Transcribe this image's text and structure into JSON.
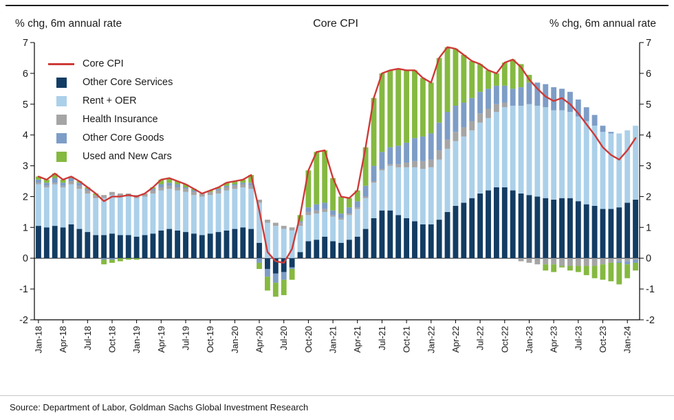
{
  "header": {
    "left_axis_title": "% chg, 6m annual rate",
    "title": "Core CPI",
    "right_axis_title": "% chg, 6m annual rate"
  },
  "source": "Source: Department of Labor, Goldman Sachs Global Investment Research",
  "chart_data": {
    "type": "bar",
    "stacked": true,
    "grid": false,
    "legend_position": "top-left",
    "title": "Core CPI",
    "ylabel_left": "% chg, 6m annual rate",
    "ylabel_right": "% chg, 6m annual rate",
    "ylim": [
      -2,
      7
    ],
    "yticks": [
      -2,
      -1,
      0,
      1,
      2,
      3,
      4,
      5,
      6,
      7
    ],
    "x_tick_every": 3,
    "months": [
      "Jan-18",
      "Feb-18",
      "Mar-18",
      "Apr-18",
      "May-18",
      "Jun-18",
      "Jul-18",
      "Aug-18",
      "Sep-18",
      "Oct-18",
      "Nov-18",
      "Dec-18",
      "Jan-19",
      "Feb-19",
      "Mar-19",
      "Apr-19",
      "May-19",
      "Jun-19",
      "Jul-19",
      "Aug-19",
      "Sep-19",
      "Oct-19",
      "Nov-19",
      "Dec-19",
      "Jan-20",
      "Feb-20",
      "Mar-20",
      "Apr-20",
      "May-20",
      "Jun-20",
      "Jul-20",
      "Aug-20",
      "Sep-20",
      "Oct-20",
      "Nov-20",
      "Dec-20",
      "Jan-21",
      "Feb-21",
      "Mar-21",
      "Apr-21",
      "May-21",
      "Jun-21",
      "Jul-21",
      "Aug-21",
      "Sep-21",
      "Oct-21",
      "Nov-21",
      "Dec-21",
      "Jan-22",
      "Feb-22",
      "Mar-22",
      "Apr-22",
      "May-22",
      "Jun-22",
      "Jul-22",
      "Aug-22",
      "Sep-22",
      "Oct-22",
      "Nov-22",
      "Dec-22",
      "Jan-23",
      "Feb-23",
      "Mar-23",
      "Apr-23",
      "May-23",
      "Jun-23",
      "Jul-23",
      "Aug-23",
      "Sep-23",
      "Oct-23",
      "Nov-23",
      "Dec-23",
      "Jan-24",
      "Feb-24"
    ],
    "series": [
      {
        "name": "Other Core Services",
        "color": "#123c63",
        "values": [
          1.05,
          1.0,
          1.05,
          1.0,
          1.1,
          0.95,
          0.85,
          0.75,
          0.75,
          0.8,
          0.75,
          0.75,
          0.7,
          0.75,
          0.8,
          0.9,
          0.95,
          0.9,
          0.85,
          0.8,
          0.75,
          0.8,
          0.85,
          0.9,
          0.95,
          1.0,
          0.95,
          0.5,
          -0.35,
          -0.5,
          -0.45,
          -0.3,
          0.2,
          0.55,
          0.6,
          0.7,
          0.55,
          0.5,
          0.6,
          0.7,
          0.95,
          1.3,
          1.55,
          1.55,
          1.4,
          1.3,
          1.2,
          1.1,
          1.1,
          1.25,
          1.5,
          1.7,
          1.8,
          1.95,
          2.1,
          2.2,
          2.3,
          2.3,
          2.2,
          2.1,
          2.05,
          2.0,
          1.95,
          1.9,
          1.95,
          1.95,
          1.85,
          1.75,
          1.7,
          1.6,
          1.6,
          1.65,
          1.8,
          1.9
        ]
      },
      {
        "name": "Rent + OER",
        "color": "#abd0e9",
        "values": [
          1.35,
          1.3,
          1.35,
          1.3,
          1.3,
          1.3,
          1.25,
          1.2,
          1.2,
          1.25,
          1.25,
          1.25,
          1.25,
          1.25,
          1.3,
          1.3,
          1.3,
          1.3,
          1.3,
          1.25,
          1.25,
          1.25,
          1.25,
          1.3,
          1.3,
          1.3,
          1.3,
          1.3,
          1.15,
          1.05,
          0.95,
          0.9,
          0.85,
          0.85,
          0.85,
          0.8,
          0.8,
          0.75,
          0.8,
          0.9,
          1.0,
          1.15,
          1.3,
          1.45,
          1.55,
          1.65,
          1.75,
          1.8,
          1.85,
          1.95,
          2.05,
          2.1,
          2.15,
          2.2,
          2.3,
          2.35,
          2.45,
          2.6,
          2.75,
          2.85,
          2.95,
          2.95,
          2.95,
          2.9,
          2.85,
          2.8,
          2.75,
          2.7,
          2.6,
          2.5,
          2.45,
          2.4,
          2.35,
          2.4
        ]
      },
      {
        "name": "Health Insurance",
        "color": "#a5a5a5",
        "values": [
          0.05,
          0.05,
          0.05,
          0.05,
          0.1,
          0.1,
          0.1,
          0.1,
          0.1,
          0.1,
          0.1,
          0.1,
          0.1,
          0.1,
          0.1,
          0.1,
          0.1,
          0.1,
          0.1,
          0.1,
          0.1,
          0.1,
          0.1,
          0.1,
          0.1,
          0.1,
          0.1,
          0.1,
          0.1,
          0.1,
          0.1,
          0.1,
          0.1,
          0.1,
          0.1,
          0.1,
          0.05,
          0.05,
          0.05,
          0.05,
          0.05,
          0.05,
          0.05,
          0.05,
          0.1,
          0.15,
          0.2,
          0.25,
          0.25,
          0.3,
          0.3,
          0.3,
          0.3,
          0.3,
          0.3,
          0.3,
          0.25,
          0.15,
          0.0,
          -0.1,
          -0.15,
          -0.2,
          -0.2,
          -0.2,
          -0.25,
          -0.25,
          -0.25,
          -0.25,
          -0.25,
          -0.2,
          -0.15,
          -0.1,
          -0.1,
          -0.05
        ]
      },
      {
        "name": "Other Core Goods",
        "color": "#7d9dc7",
        "values": [
          0.1,
          0.1,
          0.15,
          0.1,
          0.1,
          0.1,
          0.05,
          0.0,
          -0.05,
          -0.05,
          0.0,
          0.0,
          0.0,
          0.0,
          0.05,
          0.1,
          0.1,
          0.1,
          0.05,
          0.05,
          0.0,
          0.0,
          0.05,
          0.05,
          0.05,
          0.05,
          0.1,
          -0.15,
          -0.25,
          -0.3,
          -0.25,
          -0.05,
          0.05,
          0.15,
          0.2,
          0.2,
          0.15,
          0.15,
          0.2,
          0.2,
          0.35,
          0.5,
          0.55,
          0.55,
          0.6,
          0.65,
          0.75,
          0.8,
          0.85,
          0.9,
          0.9,
          0.85,
          0.8,
          0.75,
          0.7,
          0.65,
          0.6,
          0.55,
          0.55,
          0.6,
          0.7,
          0.75,
          0.75,
          0.75,
          0.7,
          0.65,
          0.55,
          0.45,
          0.35,
          0.2,
          0.05,
          -0.05,
          -0.1,
          -0.1
        ]
      },
      {
        "name": "Used and New Cars",
        "color": "#85b940",
        "values": [
          0.1,
          0.1,
          0.15,
          0.1,
          0.05,
          0.05,
          0.05,
          0.05,
          -0.15,
          -0.1,
          -0.1,
          -0.05,
          -0.05,
          0.0,
          0.05,
          0.15,
          0.15,
          0.1,
          0.1,
          0.05,
          0.0,
          0.05,
          0.05,
          0.1,
          0.1,
          0.1,
          0.25,
          -0.2,
          -0.45,
          -0.45,
          -0.5,
          -0.35,
          0.2,
          1.2,
          1.7,
          1.7,
          1.05,
          0.55,
          0.3,
          0.35,
          1.25,
          2.2,
          2.55,
          2.5,
          2.5,
          2.35,
          2.2,
          1.9,
          1.65,
          2.1,
          2.1,
          1.85,
          1.55,
          1.2,
          0.9,
          0.6,
          0.4,
          0.75,
          0.95,
          0.75,
          0.25,
          0.0,
          -0.2,
          -0.25,
          -0.05,
          -0.15,
          -0.2,
          -0.3,
          -0.4,
          -0.5,
          -0.6,
          -0.7,
          -0.45,
          -0.25
        ]
      }
    ],
    "overlay_line": {
      "name": "Core CPI",
      "color": "#cd3a37",
      "values": [
        2.65,
        2.55,
        2.75,
        2.55,
        2.65,
        2.5,
        2.3,
        2.1,
        1.85,
        2.0,
        2.0,
        2.05,
        2.0,
        2.1,
        2.3,
        2.55,
        2.6,
        2.5,
        2.4,
        2.25,
        2.1,
        2.2,
        2.3,
        2.45,
        2.5,
        2.55,
        2.7,
        1.55,
        0.2,
        -0.1,
        -0.15,
        0.3,
        1.4,
        2.85,
        3.45,
        3.5,
        2.6,
        2.0,
        1.95,
        2.2,
        3.6,
        5.2,
        6.0,
        6.1,
        6.15,
        6.1,
        6.1,
        5.85,
        5.7,
        6.5,
        6.85,
        6.8,
        6.6,
        6.4,
        6.3,
        6.1,
        6.0,
        6.35,
        6.45,
        6.2,
        5.8,
        5.5,
        5.25,
        5.1,
        5.2,
        5.0,
        4.7,
        4.35,
        4.0,
        3.6,
        3.35,
        3.2,
        3.5,
        3.9
      ]
    }
  }
}
